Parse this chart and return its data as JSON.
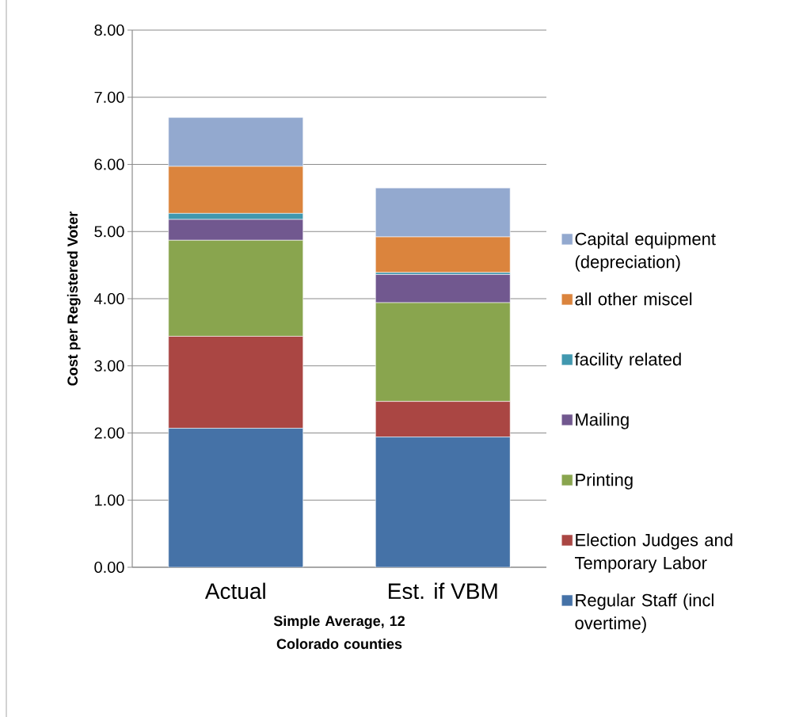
{
  "chart_data": {
    "type": "bar",
    "stacked": true,
    "categories": [
      "Actual",
      "Est. if VBM"
    ],
    "xlabel": "Simple Average, 12 Colorado counties",
    "ylabel": "Cost per Registered Voter",
    "series": [
      {
        "name": "Regular Staff (incl overtime)",
        "color": "#4572a7",
        "values": [
          2.07,
          1.94
        ]
      },
      {
        "name": "Election Judges and Temporary Labor",
        "color": "#aa4643",
        "values": [
          1.37,
          0.53
        ]
      },
      {
        "name": "Printing",
        "color": "#89a54e",
        "values": [
          1.43,
          1.47
        ]
      },
      {
        "name": "Mailing",
        "color": "#71588f",
        "values": [
          0.31,
          0.42
        ]
      },
      {
        "name": "facility related",
        "color": "#4198af",
        "values": [
          0.09,
          0.03
        ]
      },
      {
        "name": "all other miscel",
        "color": "#db843d",
        "values": [
          0.7,
          0.53
        ]
      },
      {
        "name": "Capital equipment (depreciation)",
        "color": "#93a9cf",
        "values": [
          0.73,
          0.73
        ]
      }
    ],
    "ylim": [
      0,
      8
    ],
    "yticks": [
      {
        "value": 0,
        "label": "0.00"
      },
      {
        "value": 1,
        "label": "1.00"
      },
      {
        "value": 2,
        "label": "2.00"
      },
      {
        "value": 3,
        "label": "3.00"
      },
      {
        "value": 4,
        "label": "4.00"
      },
      {
        "value": 5,
        "label": "5.00"
      },
      {
        "value": 6,
        "label": "6.00"
      },
      {
        "value": 7,
        "label": "7.00"
      },
      {
        "value": 8,
        "label": "8.00"
      }
    ],
    "grid": "y",
    "legend": "right"
  }
}
